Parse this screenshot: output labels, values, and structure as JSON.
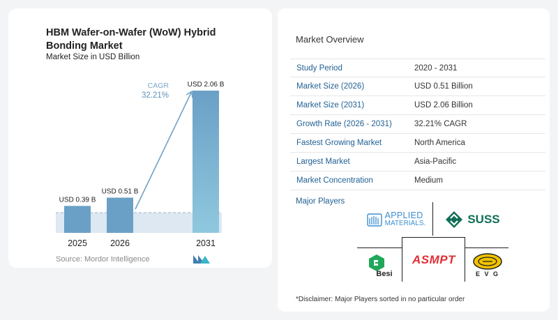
{
  "chart_data": {
    "type": "bar",
    "title": "HBM Wafer-on-Wafer (WoW) Hybrid Bonding Market",
    "subtitle": "Market Size in USD Billion",
    "categories": [
      "2025",
      "2026",
      "2031"
    ],
    "values": [
      0.39,
      0.51,
      2.06
    ],
    "value_labels": [
      "USD 0.39 B",
      "USD 0.51 B",
      "USD 2.06 B"
    ],
    "ylim": [
      0,
      2.1
    ],
    "cagr_label": "CAGR",
    "cagr_value": "32.21%",
    "colors": {
      "bar": "#6aa0c6",
      "bar_light": "#8fc3dd",
      "arrow": "#6fa2c7",
      "band": "#dde8f2"
    }
  },
  "source": "Source:  Mordor Intelligence",
  "overview": {
    "title": "Market Overview",
    "rows": [
      {
        "label": "Study Period",
        "value": "2020 - 2031"
      },
      {
        "label": "Market Size (2026)",
        "value": "USD 0.51 Billion"
      },
      {
        "label": "Market Size (2031)",
        "value": "USD 2.06 Billion"
      },
      {
        "label": "Growth Rate (2026 - 2031)",
        "value": "32.21% CAGR"
      },
      {
        "label": "Fastest Growing Market",
        "value": "North America"
      },
      {
        "label": "Largest Market",
        "value": "Asia-Pacific"
      },
      {
        "label": "Market Concentration",
        "value": "Medium"
      }
    ]
  },
  "players": {
    "title": "Major Players",
    "applied_line1": "APPLIED",
    "applied_line2": "MATERIALS.",
    "suss": "SUSS",
    "besi": "Besi",
    "asmpt": "ASMPT",
    "evg": "E V G"
  },
  "disclaimer": "*Disclaimer: Major Players sorted in no particular order"
}
